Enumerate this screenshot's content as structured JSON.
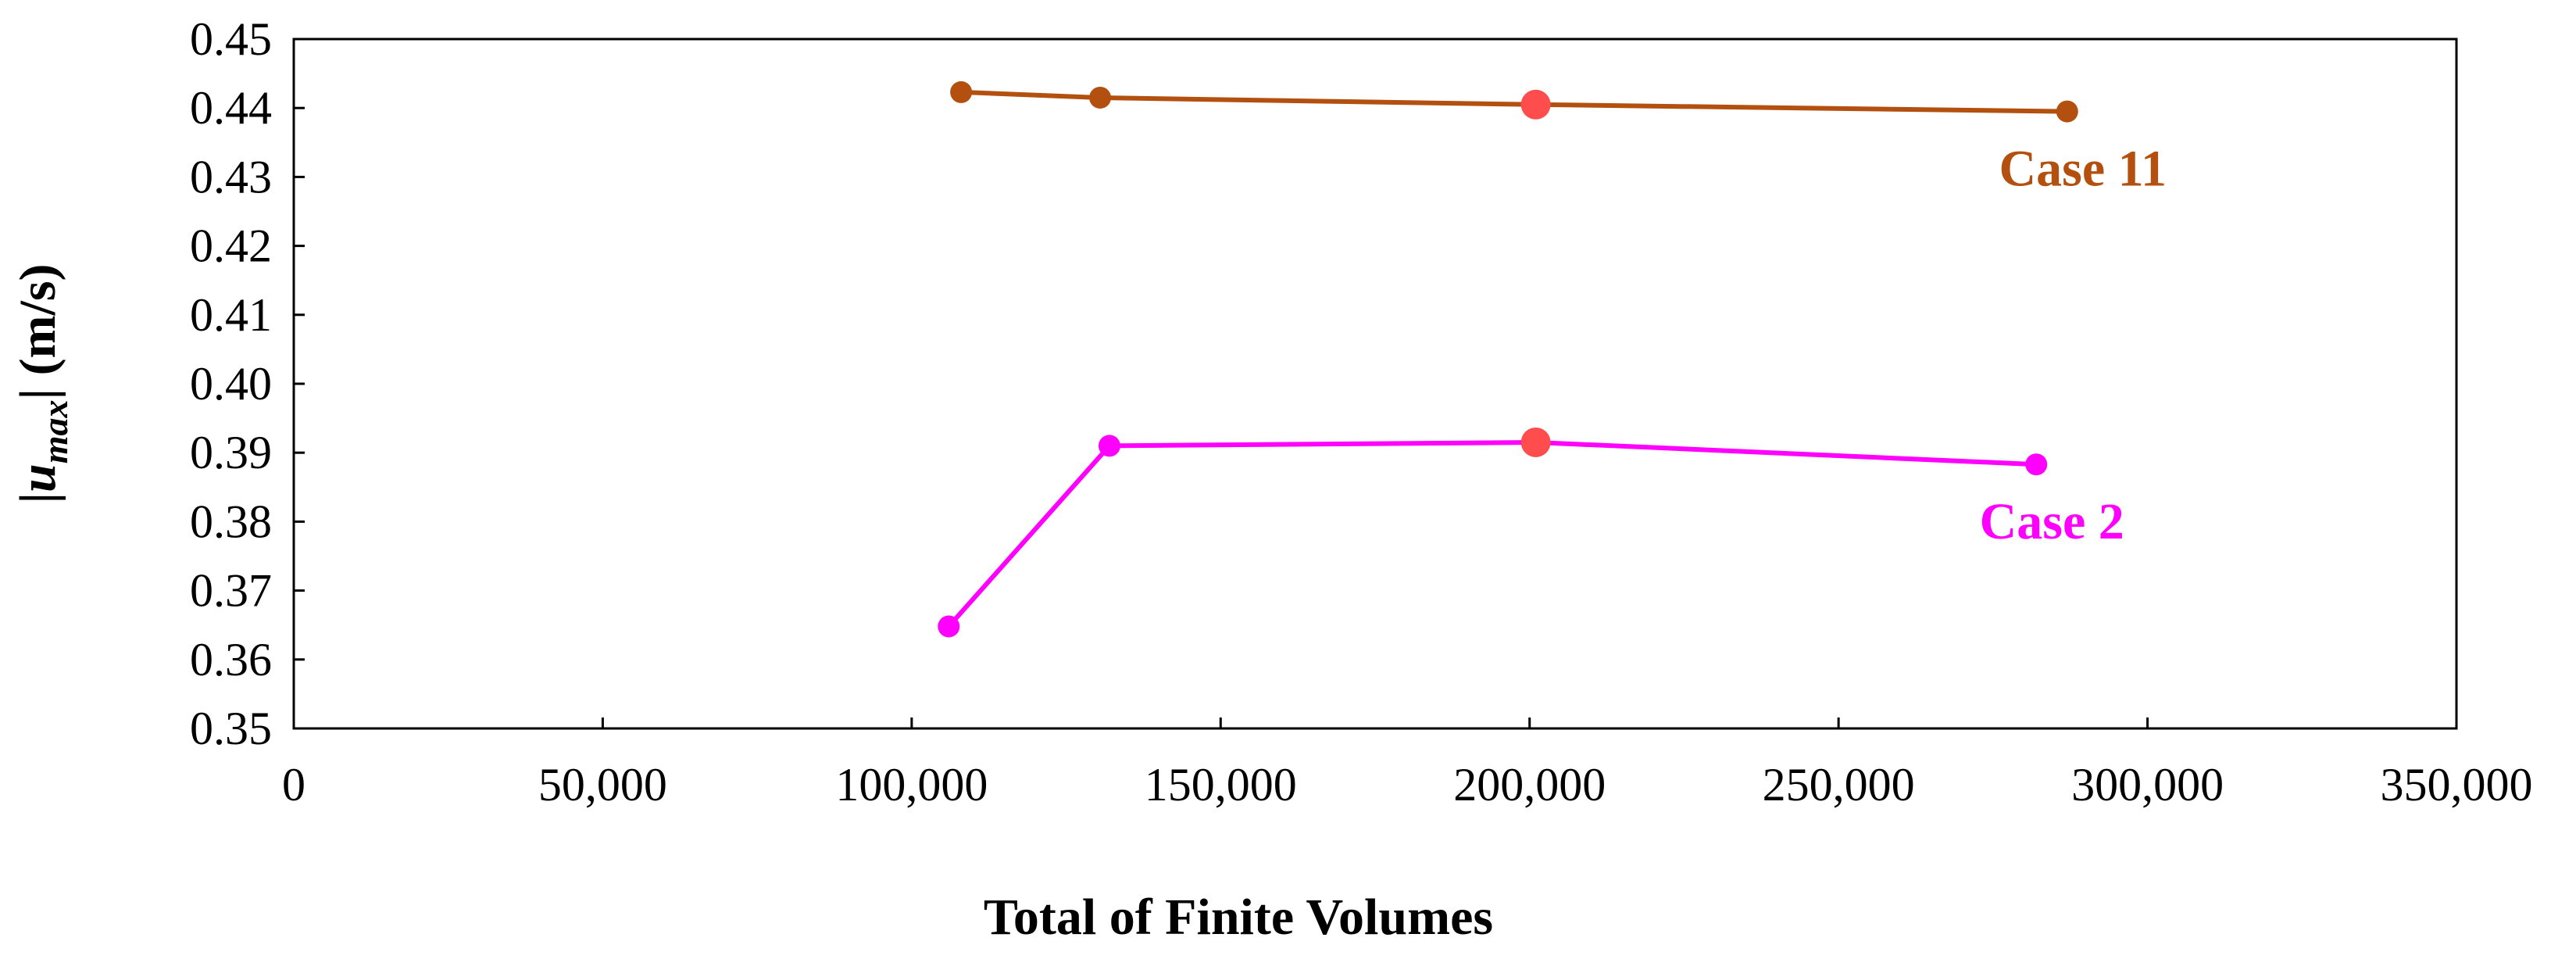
{
  "chart_data": {
    "type": "line",
    "xlabel": "Total of Finite Volumes",
    "ylabel": {
      "prefix": "|",
      "main": "u",
      "sub": "max",
      "suffix": "| (m/s)"
    },
    "xlim": [
      0,
      350000
    ],
    "ylim": [
      0.35,
      0.45
    ],
    "x_ticks": [
      0,
      50000,
      100000,
      150000,
      200000,
      250000,
      300000,
      350000
    ],
    "x_tick_labels": [
      "0",
      "50,000",
      "100,000",
      "150,000",
      "200,000",
      "250,000",
      "300,000",
      "350,000"
    ],
    "y_ticks": [
      0.35,
      0.36,
      0.37,
      0.38,
      0.39,
      0.4,
      0.41,
      0.42,
      0.43,
      0.44,
      0.45
    ],
    "y_tick_labels": [
      "0.35",
      "0.36",
      "0.37",
      "0.38",
      "0.39",
      "0.40",
      "0.41",
      "0.42",
      "0.43",
      "0.44",
      "0.45"
    ],
    "grid": false,
    "series": [
      {
        "name": "Case 11",
        "color": "#b4500f",
        "highlight_color": "#ff4d4d",
        "points": [
          {
            "x": 108000,
            "y": 0.4423
          },
          {
            "x": 130500,
            "y": 0.4415
          },
          {
            "x": 201000,
            "y": 0.4405,
            "highlight": true
          },
          {
            "x": 287000,
            "y": 0.4395
          }
        ]
      },
      {
        "name": "Case 2",
        "color": "#ff00ff",
        "highlight_color": "#ff4d4d",
        "points": [
          {
            "x": 106000,
            "y": 0.3648
          },
          {
            "x": 132000,
            "y": 0.391
          },
          {
            "x": 201000,
            "y": 0.3915,
            "highlight": true
          },
          {
            "x": 282000,
            "y": 0.3883
          }
        ]
      }
    ]
  }
}
